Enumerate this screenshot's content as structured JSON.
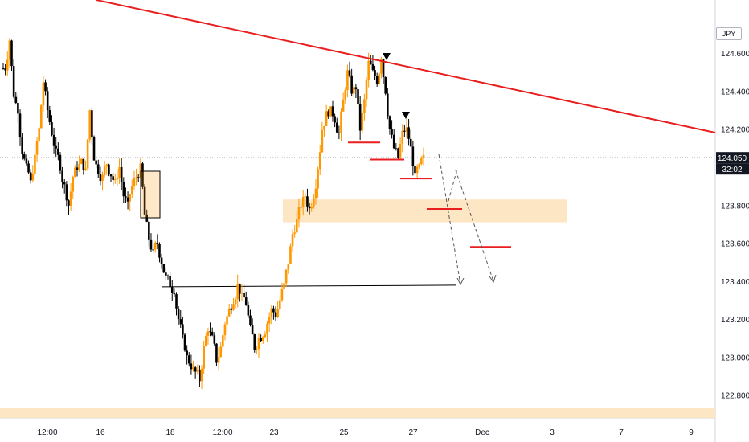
{
  "currency_label": "JPY",
  "price_badge": "124.050",
  "time_badge": "32:02",
  "colors": {
    "candle_up": "#ff9800",
    "candle_down": "#000000",
    "trendline": "#e91e1e",
    "zone_fill": "#fde6c4",
    "level_marks": "#e91e1e",
    "support_line": "#000000"
  },
  "chart_data": {
    "type": "candlestick",
    "title": "",
    "y_axis": {
      "ticks": [
        "124.600",
        "124.400",
        "124.200",
        "124.000",
        "123.800",
        "123.600",
        "123.400",
        "123.200",
        "123.000",
        "122.800"
      ],
      "range": [
        122.68,
        124.88
      ]
    },
    "x_axis": {
      "ticks": [
        "12:00",
        "16",
        "18",
        "12:00",
        "23",
        "25",
        "27",
        "Dec",
        "3",
        "7",
        "9"
      ]
    },
    "last_price": 124.05,
    "ohlc_sample_path": [
      124.52,
      124.67,
      124.38,
      124.3,
      124.08,
      124.0,
      123.92,
      124.05,
      124.2,
      124.45,
      124.3,
      124.18,
      124.08,
      124.0,
      123.9,
      123.8,
      123.95,
      124.0,
      124.03,
      123.98,
      124.3,
      124.05,
      123.98,
      123.95,
      124.02,
      123.96,
      123.92,
      124.0,
      123.85,
      123.8,
      123.9,
      123.95,
      124.0,
      123.75,
      123.62,
      123.55,
      123.6,
      123.5,
      123.42,
      123.38,
      123.35,
      123.2,
      123.1,
      123.0,
      122.95,
      122.92,
      122.88,
      123.05,
      123.15,
      123.1,
      122.98,
      123.05,
      123.18,
      123.25,
      123.3,
      123.38,
      123.32,
      123.28,
      123.15,
      123.05,
      123.1,
      123.12,
      123.18,
      123.25,
      123.22,
      123.3,
      123.38,
      123.5,
      123.65,
      123.72,
      123.8,
      123.85,
      123.78,
      123.85,
      124.0,
      124.2,
      124.28,
      124.3,
      124.25,
      124.18,
      124.35,
      124.5,
      124.4,
      124.42,
      124.2,
      124.35,
      124.55,
      124.5,
      124.45,
      124.58,
      124.4,
      124.2,
      124.1,
      124.05,
      124.18,
      124.2,
      124.1,
      123.95,
      124.0,
      124.05
    ],
    "trendline": {
      "from": [
        "start",
        124.88
      ],
      "to": [
        "9",
        124.18
      ]
    },
    "demand_zone": [
      123.71,
      123.83
    ],
    "horizontal_support": 123.37,
    "level_marks": [
      124.13,
      124.04,
      123.94,
      123.78,
      123.58
    ],
    "projection_path": [
      124.05,
      123.38,
      124.0,
      123.38
    ]
  }
}
